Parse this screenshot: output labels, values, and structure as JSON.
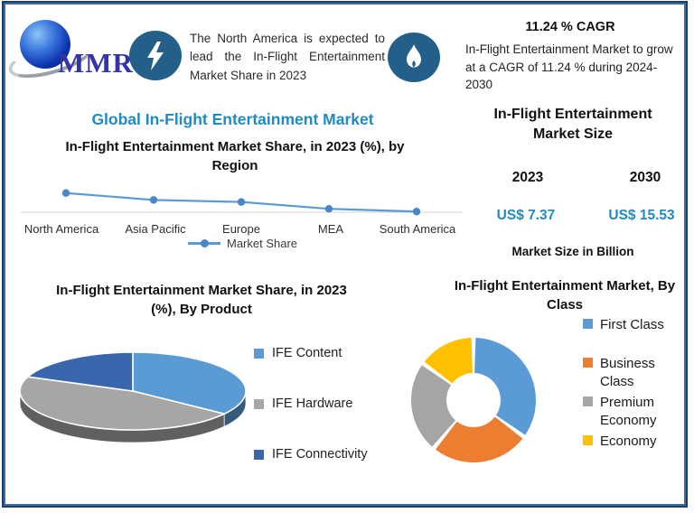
{
  "brand": {
    "logo_text": "MMR",
    "logo_icon": "globe-icon"
  },
  "colors": {
    "accent_blue": "#1e8bc3",
    "badge_circle": "#235f88",
    "frame_border": "#1c3f63",
    "line_series": "#5b9bd5"
  },
  "icons": {
    "header_left": "lightning-bolt-icon",
    "header_right": "flame-icon"
  },
  "header": {
    "headline": "The North America is expected to lead the In-Flight Entertainment Market Share in 2023",
    "cagr_title": "11.24 % CAGR",
    "cagr_text": "In-Flight Entertainment Market to grow at a CAGR of 11.24 % during 2024-2030"
  },
  "main_title": "Global In-Flight Entertainment Market",
  "market_size": {
    "title": "In-Flight Entertainment Market Size",
    "year_1": "2023",
    "year_2": "2030",
    "value_1": "US$ 7.37",
    "value_2": "US$ 15.53",
    "footnote": "Market Size in Billion"
  },
  "chart_data": [
    {
      "id": "region_share",
      "type": "line",
      "title": "In-Flight Entertainment Market Share, in 2023 (%), by Region",
      "categories": [
        "North America",
        "Asia Pacific",
        "Europe",
        "MEA",
        "South America"
      ],
      "series": [
        {
          "name": "Market Share",
          "values": [
            35,
            25,
            22,
            12,
            8
          ]
        }
      ],
      "ylim": [
        7,
        36
      ],
      "grid": false,
      "legend_position": "bottom",
      "line_color": "#5b9bd5",
      "marker_color": "#4a86c8",
      "axis_color": "#d9d9d9"
    },
    {
      "id": "product_share",
      "type": "pie",
      "style": "3d",
      "title": "In-Flight Entertainment Market Share, in 2023 (%), By Product",
      "labels": [
        "IFE Content",
        "IFE Hardware",
        "IFE Connectivity"
      ],
      "values": [
        35,
        46,
        19
      ],
      "colors": [
        "#5b9bd5",
        "#a6a6a6",
        "#3a66ad"
      ],
      "legend_position": "right"
    },
    {
      "id": "class_share",
      "type": "pie",
      "style": "donut",
      "title": "In-Flight Entertainment Market, By Class",
      "labels": [
        "First Class",
        "Business Class",
        "Premium Economy",
        "Economy"
      ],
      "values": [
        35,
        26,
        24,
        15
      ],
      "colors": [
        "#5b9bd5",
        "#ed7d31",
        "#a5a5a5",
        "#ffc000"
      ],
      "legend_position": "right"
    }
  ]
}
